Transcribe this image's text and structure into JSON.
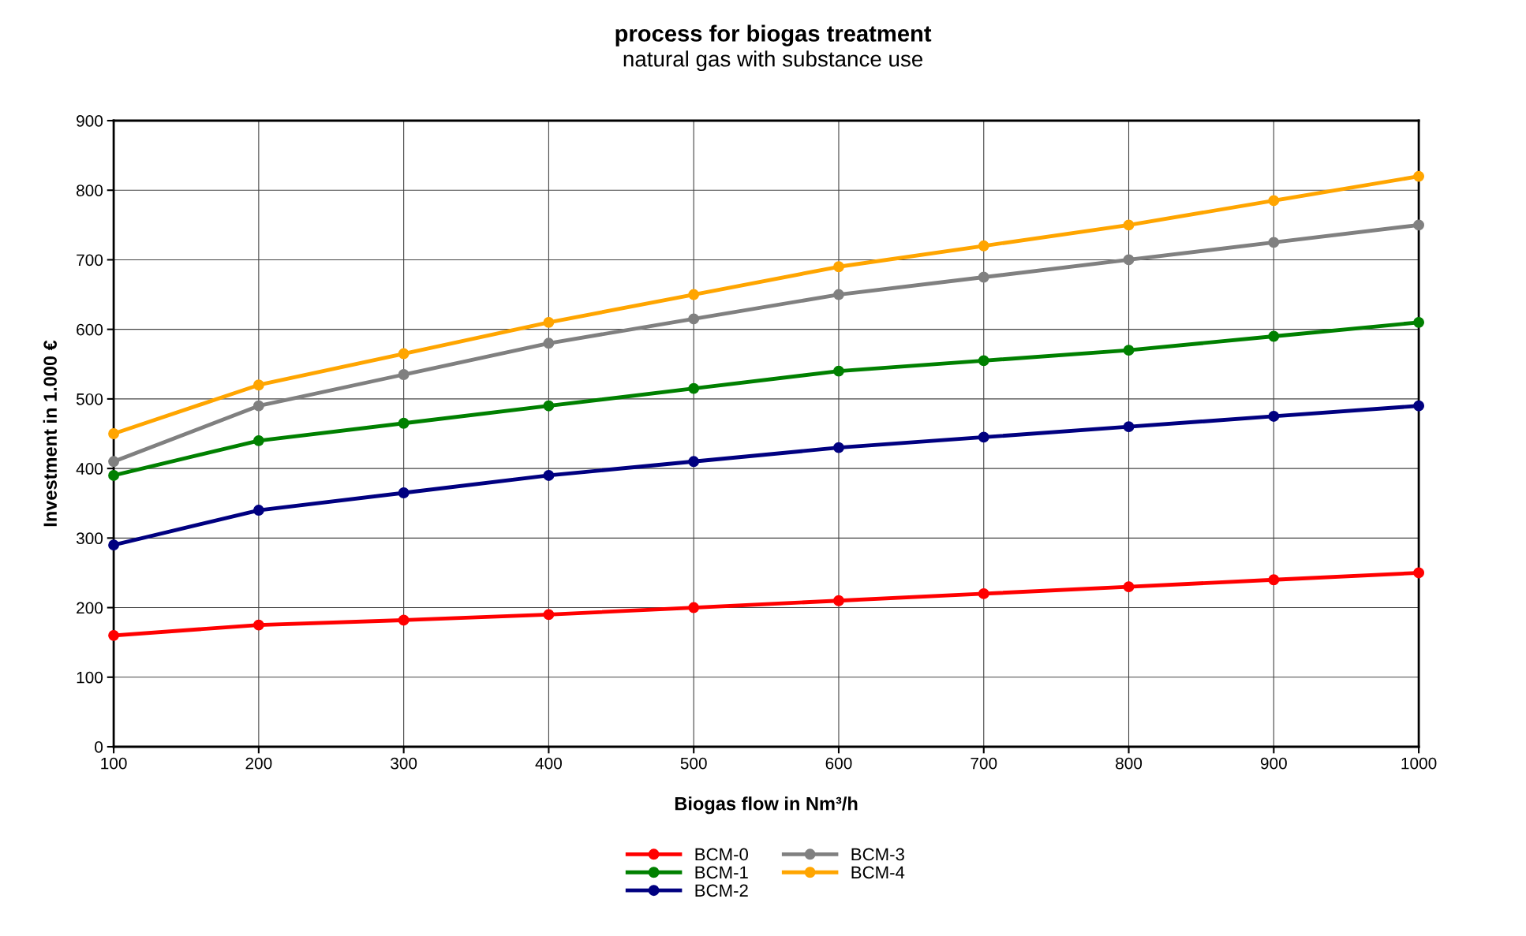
{
  "chart_data": {
    "type": "line",
    "title": "process for biogas treatment",
    "subtitle": "natural gas with substance use",
    "xlabel": "Biogas flow in Nm³/h",
    "ylabel": "Investment in 1.000 €",
    "x": [
      100,
      200,
      300,
      400,
      500,
      600,
      700,
      800,
      900,
      1000
    ],
    "series": [
      {
        "name": "BCM-0",
        "color": "#ff0000",
        "values": [
          160,
          175,
          182,
          190,
          200,
          210,
          220,
          230,
          240,
          250
        ]
      },
      {
        "name": "BCM-1",
        "color": "#008000",
        "values": [
          390,
          440,
          465,
          490,
          515,
          540,
          555,
          570,
          590,
          610
        ]
      },
      {
        "name": "BCM-2",
        "color": "#000080",
        "values": [
          290,
          340,
          365,
          390,
          410,
          430,
          445,
          460,
          475,
          490
        ]
      },
      {
        "name": "BCM-3",
        "color": "#808080",
        "values": [
          410,
          490,
          535,
          580,
          615,
          650,
          675,
          700,
          725,
          750
        ]
      },
      {
        "name": "BCM-4",
        "color": "#ffa500",
        "values": [
          450,
          520,
          565,
          610,
          650,
          690,
          720,
          750,
          785,
          820
        ]
      }
    ],
    "xlim": [
      100,
      1000
    ],
    "xticks": [
      100,
      200,
      300,
      400,
      500,
      600,
      700,
      800,
      900,
      1000
    ],
    "ylim": [
      0,
      900
    ],
    "yticks": [
      0,
      100,
      200,
      300,
      400,
      500,
      600,
      700,
      800,
      900
    ],
    "grid": true,
    "legend": "bottom",
    "marker": "circle",
    "line_style": "solid"
  }
}
